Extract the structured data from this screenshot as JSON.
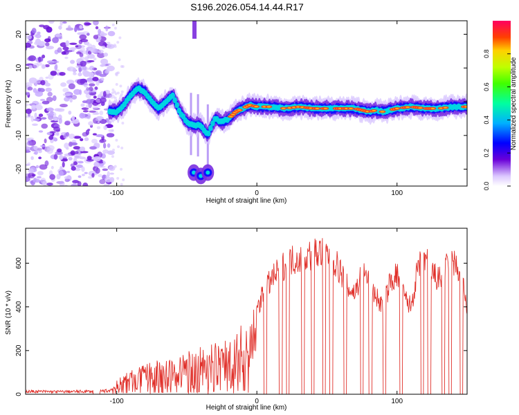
{
  "title": "S196.2026.054.14.44.R17",
  "colorbar": {
    "label": "Normalized spectral amplitude",
    "ticks": [
      "0.0",
      "0.2",
      "0.4",
      "0.6",
      "0.8"
    ],
    "range": [
      0,
      1
    ]
  },
  "chart_data": [
    {
      "type": "heatmap",
      "xlabel": "Height of straight line (km)",
      "ylabel": "Frequency (Hz)",
      "xlim": [
        -165,
        150
      ],
      "ylim": [
        -25,
        24
      ],
      "xticks": [
        -100,
        0,
        100
      ],
      "yticks": [
        -20,
        -10,
        0,
        10,
        20
      ],
      "ridge": {
        "x": [
          -105,
          -100,
          -95,
          -90,
          -85,
          -80,
          -75,
          -70,
          -65,
          -60,
          -55,
          -50,
          -45,
          -40,
          -35,
          -30,
          -25,
          -20,
          -15,
          -10,
          -5,
          0,
          10,
          20,
          30,
          40,
          50,
          60,
          70,
          75,
          80,
          85,
          90,
          95,
          100,
          110,
          120,
          130,
          140,
          150
        ],
        "y": [
          -3,
          -3,
          -1,
          2,
          4,
          3,
          0,
          -2,
          0,
          2,
          -3,
          -6,
          -7,
          -7,
          -10,
          -5,
          -6,
          -5,
          -3,
          -2,
          -1,
          -1.5,
          -1.5,
          -2,
          -1.5,
          -2,
          -2,
          -2,
          -2,
          -2.5,
          -3,
          -2.5,
          -3,
          -2.5,
          -2,
          -1.5,
          -2,
          -2,
          -1.5,
          -1.5
        ]
      },
      "low_branch": {
        "x": [
          -45,
          -40,
          -35
        ],
        "y": [
          -21,
          -22,
          -21
        ]
      },
      "noise_region_x": [
        -165,
        -103
      ]
    },
    {
      "type": "line",
      "xlabel": "Height of straight line (km)",
      "ylabel": "SNR (10 * v/v)",
      "xlim": [
        -165,
        150
      ],
      "ylim": [
        0,
        760
      ],
      "xticks": [
        -100,
        0,
        100
      ],
      "yticks": [
        0,
        200,
        400,
        600
      ],
      "series": [
        {
          "color": "#e0302a",
          "envelope": {
            "x": [
              -165,
              -140,
              -115,
              -105,
              -95,
              -85,
              -75,
              -65,
              -55,
              -45,
              -35,
              -25,
              -15,
              -10,
              -5,
              0,
              5,
              10,
              15,
              20,
              25,
              30,
              35,
              40,
              45,
              50,
              55,
              60,
              65,
              70,
              75,
              80,
              85,
              90,
              95,
              100,
              105,
              110,
              115,
              120,
              125,
              130,
              135,
              140,
              145,
              150
            ],
            "y": [
              20,
              18,
              20,
              25,
              100,
              120,
              150,
              160,
              180,
              210,
              230,
              250,
              290,
              330,
              360,
              420,
              500,
              560,
              600,
              640,
              660,
              670,
              680,
              690,
              700,
              690,
              660,
              600,
              520,
              500,
              600,
              560,
              480,
              430,
              550,
              590,
              480,
              430,
              620,
              680,
              600,
              560,
              620,
              650,
              600,
              430
            ]
          },
          "dropouts_x": [
            6,
            17,
            22,
            33,
            40,
            48,
            53,
            63,
            75,
            81,
            91,
            103,
            118,
            123,
            133,
            138,
            146
          ]
        }
      ]
    }
  ]
}
